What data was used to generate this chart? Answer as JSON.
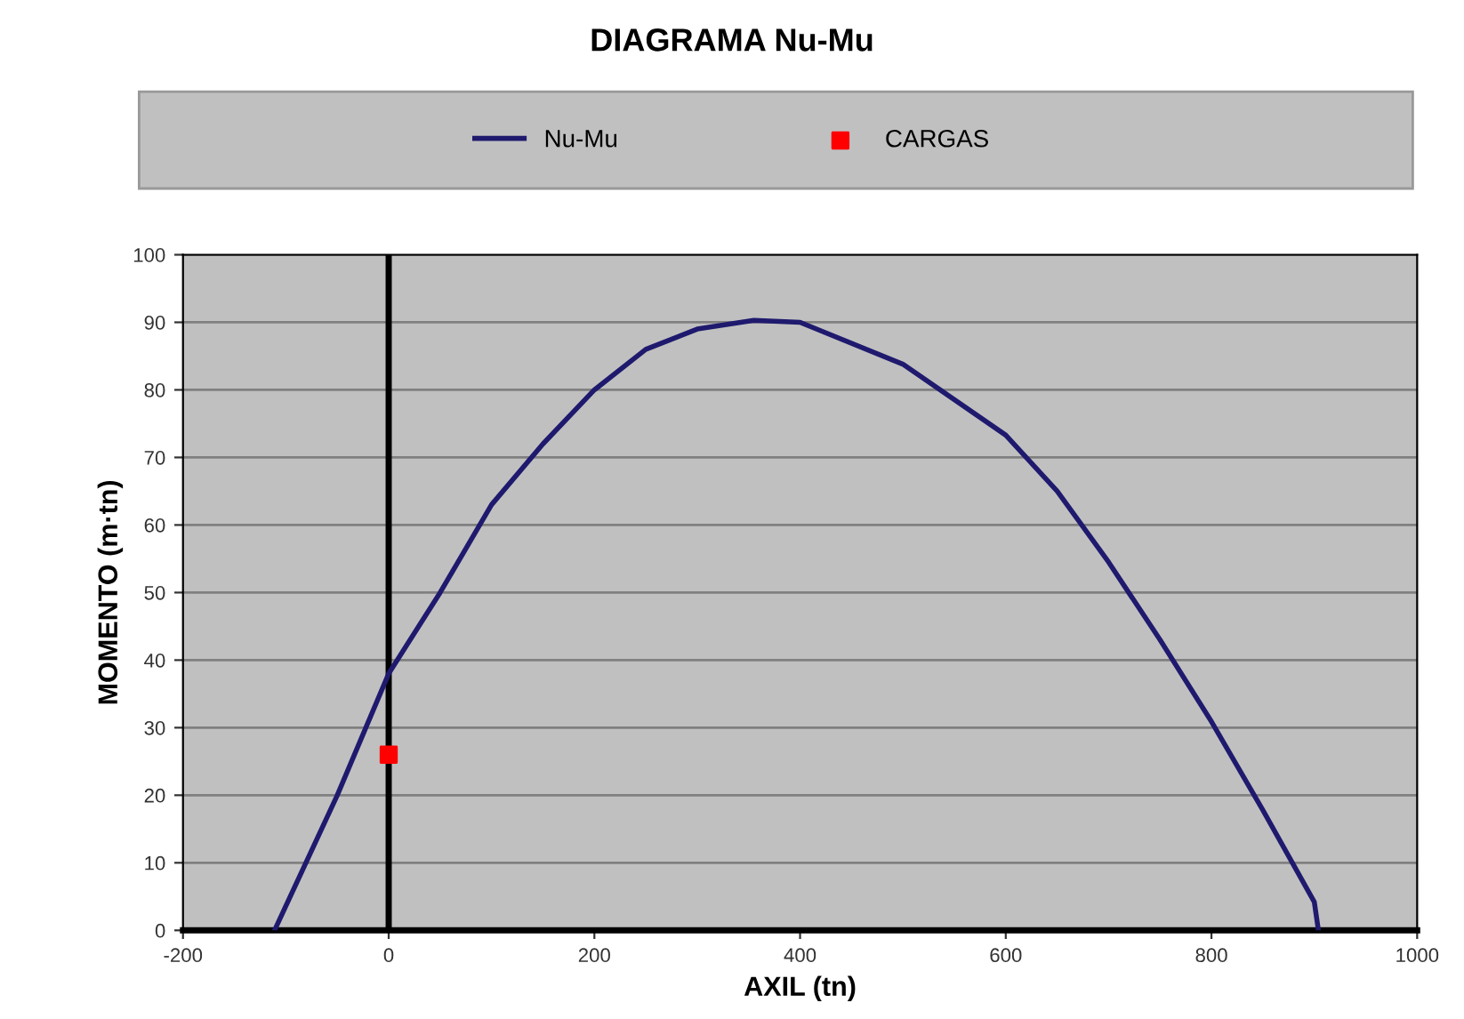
{
  "chart_data": {
    "type": "line",
    "title": "DIAGRAMA Nu-Mu",
    "xlabel": "AXIL (tn)",
    "ylabel": "MOMENTO (m·tn)",
    "xlim": [
      -200,
      1000
    ],
    "xticks": [
      -200,
      0,
      200,
      400,
      600,
      800,
      1000
    ],
    "ylim": [
      0,
      100
    ],
    "yticks": [
      0,
      10,
      20,
      30,
      40,
      50,
      60,
      70,
      80,
      90,
      100
    ],
    "grid": "y",
    "legend": "top",
    "ref_lines": [
      {
        "axis": "x",
        "value": 0,
        "color": "#000000"
      }
    ],
    "series": [
      {
        "name": "Nu-Mu",
        "color": "#1f1a6e",
        "marker": "none",
        "line_style": "solid",
        "x": [
          -111,
          -50,
          0,
          50,
          100,
          150,
          200,
          250,
          300,
          355,
          400,
          500,
          600,
          650,
          700,
          750,
          800,
          850,
          900,
          904
        ],
        "values": [
          0,
          20,
          38,
          50,
          63,
          72,
          80,
          86,
          89,
          90.3,
          90,
          83.8,
          73.3,
          65,
          54.5,
          43,
          30.9,
          17.8,
          4.2,
          0
        ]
      },
      {
        "name": "CARGAS",
        "type": "scatter",
        "color": "#ff0000",
        "marker": "square",
        "x": [
          0
        ],
        "values": [
          26
        ]
      }
    ]
  }
}
